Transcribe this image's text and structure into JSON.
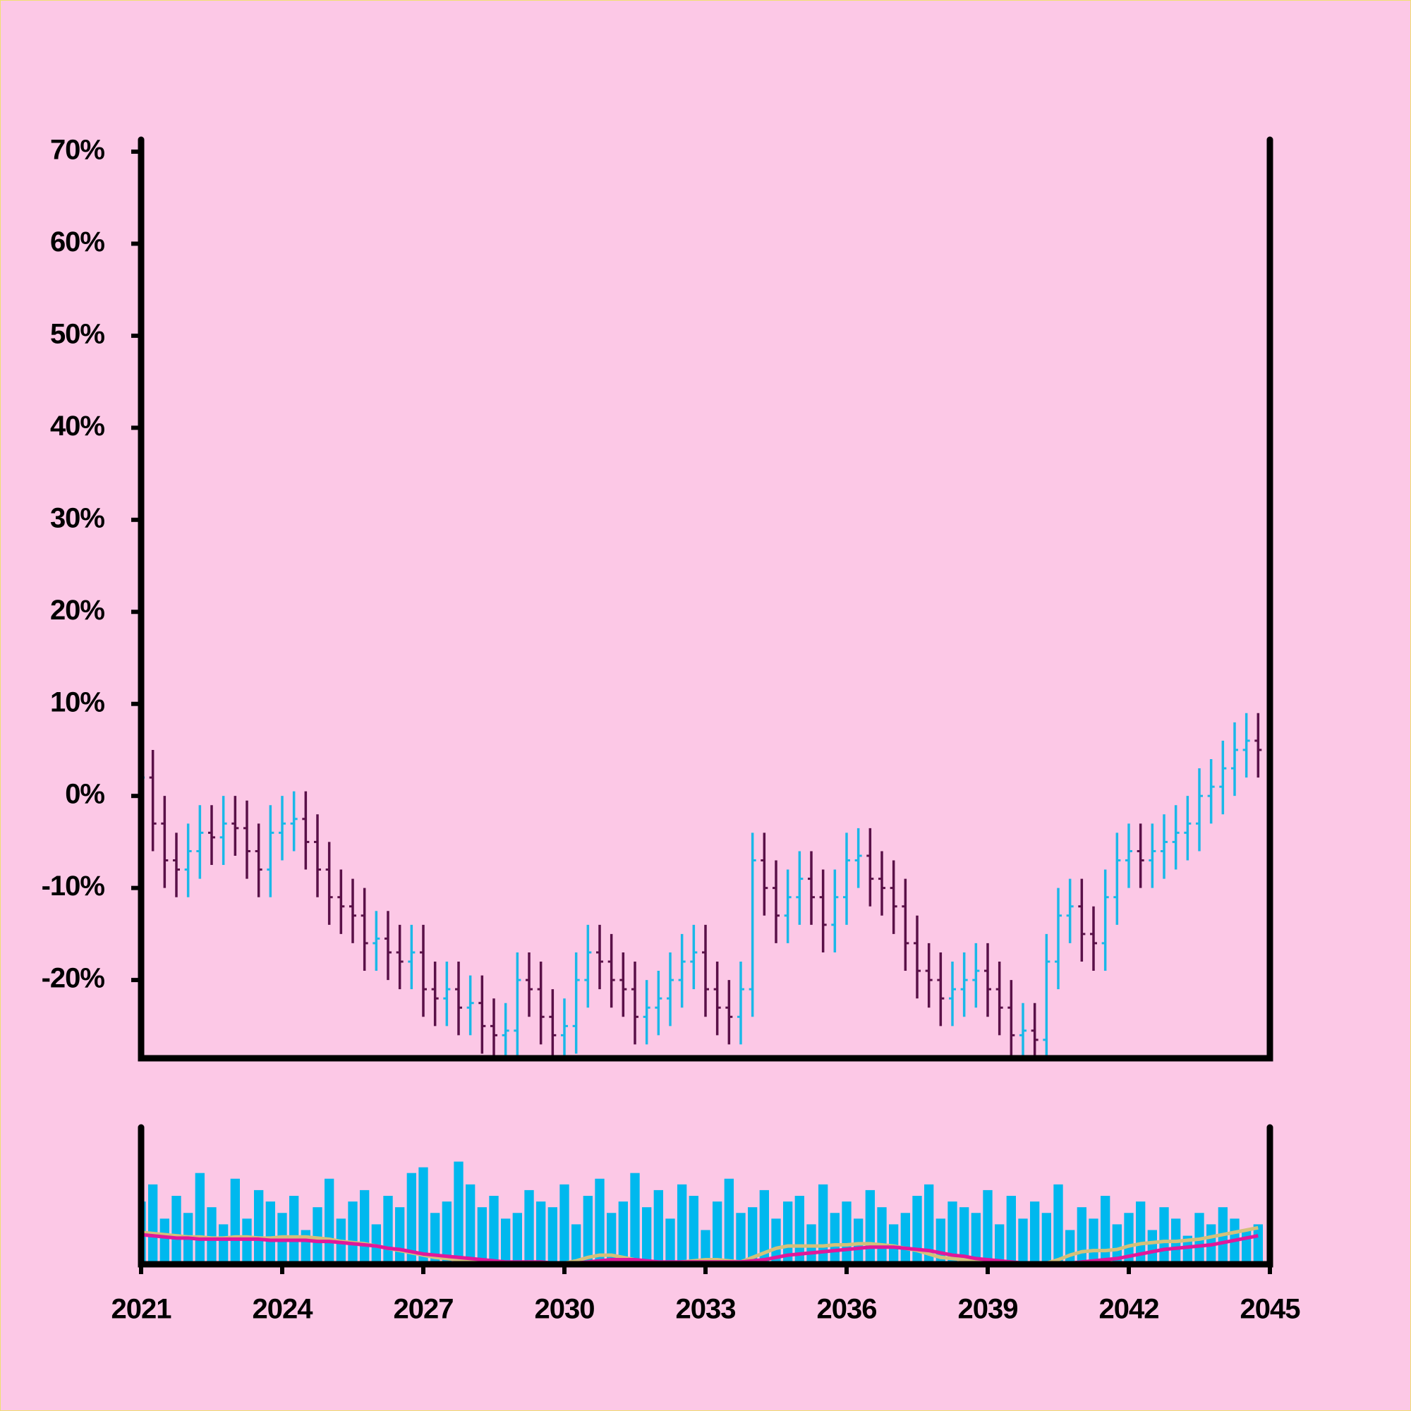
{
  "chart_data": {
    "type": "ohlc",
    "x": [
      2021,
      2021.25,
      2021.5,
      2021.75,
      2022,
      2022.25,
      2022.5,
      2022.75,
      2023,
      2023.25,
      2023.5,
      2023.75,
      2024,
      2024.25,
      2024.5,
      2024.75,
      2025,
      2025.25,
      2025.5,
      2025.75,
      2026,
      2026.25,
      2026.5,
      2026.75,
      2027,
      2027.25,
      2027.5,
      2027.75,
      2028,
      2028.25,
      2028.5,
      2028.75,
      2029,
      2029.25,
      2029.5,
      2029.75,
      2030,
      2030.25,
      2030.5,
      2030.75,
      2031,
      2031.25,
      2031.5,
      2031.75,
      2032,
      2032.25,
      2032.5,
      2032.75,
      2033,
      2033.25,
      2033.5,
      2033.75,
      2034,
      2034.25,
      2034.5,
      2034.75,
      2035,
      2035.25,
      2035.5,
      2035.75,
      2036,
      2036.25,
      2036.5,
      2036.75,
      2037,
      2037.25,
      2037.5,
      2037.75,
      2038,
      2038.25,
      2038.5,
      2038.75,
      2039,
      2039.25,
      2039.5,
      2039.75,
      2040,
      2040.25,
      2040.5,
      2040.75,
      2041,
      2041.25,
      2041.5,
      2041.75,
      2042,
      2042.25,
      2042.5,
      2042.75,
      2043,
      2043.25,
      2043.5,
      2043.75,
      2044,
      2044.25,
      2044.5,
      2044.75
    ],
    "xlim": [
      2021,
      2045
    ],
    "xticks": [
      2021,
      2024,
      2027,
      2030,
      2033,
      2036,
      2039,
      2042,
      2045
    ],
    "ylim": [
      -28.5,
      71.3
    ],
    "yticks": [
      {
        "value": -20,
        "label": "-20%"
      },
      {
        "value": -10,
        "label": "-10%"
      },
      {
        "value": 0,
        "label": "0%"
      },
      {
        "value": 10,
        "label": "10%"
      },
      {
        "value": 20,
        "label": "20%"
      },
      {
        "value": 30,
        "label": "30%"
      },
      {
        "value": 40,
        "label": "40%"
      },
      {
        "value": 50,
        "label": "50%"
      },
      {
        "value": 60,
        "label": "60%"
      },
      {
        "value": 70,
        "label": "70%"
      }
    ],
    "up_color": "#1ab8e8",
    "down_color": "#5a1048",
    "open": [
      1,
      2,
      -3,
      -7,
      -8,
      -6,
      -4,
      -4.5,
      -3,
      -3.5,
      -6,
      -8,
      -4,
      -3,
      -2.5,
      -5,
      -8,
      -11,
      -12,
      -13,
      -16,
      -15.5,
      -17,
      -18,
      -17,
      -21,
      -22,
      -21,
      -23,
      -22.5,
      -25,
      -26,
      -25.5,
      -20,
      -21,
      -24,
      -26,
      -25,
      -20,
      -17,
      -18,
      -20,
      -21,
      -24,
      -23,
      -22,
      -20,
      -18,
      -17,
      -21,
      -23,
      -24,
      -21,
      -7,
      -10,
      -13,
      -11,
      -9,
      -11,
      -14,
      -11,
      -7,
      -6.5,
      -9,
      -10,
      -12,
      -16,
      -19,
      -20,
      -22,
      -21,
      -20,
      -19,
      -21,
      -23,
      -26,
      -25.5,
      -26.5,
      -18,
      -13,
      -12,
      -15,
      -16,
      -11,
      -7,
      -6,
      -7,
      -6,
      -5,
      -4,
      -3,
      0,
      1,
      3,
      5,
      6
    ],
    "high": [
      5,
      5,
      0,
      -4,
      -3,
      -1,
      -1,
      0,
      0,
      -0.5,
      -3,
      -1,
      0,
      0.5,
      0.5,
      -2,
      -5,
      -8,
      -9,
      -10,
      -12.5,
      -12.5,
      -14,
      -14,
      -14,
      -18,
      -18,
      -18,
      -19.5,
      -19.5,
      -22,
      -22.5,
      -17,
      -17,
      -18,
      -21,
      -22,
      -17,
      -14,
      -14,
      -15,
      -17,
      -18,
      -20,
      -19,
      -17,
      -15,
      -14,
      -14,
      -18,
      -20,
      -18,
      -4,
      -4,
      -7,
      -8,
      -6,
      -6,
      -8,
      -8,
      -4,
      -3.5,
      -3.5,
      -6,
      -7,
      -9,
      -13,
      -16,
      -17,
      -18,
      -17,
      -16,
      -16,
      -18,
      -20,
      -22.5,
      -22.5,
      -15,
      -10,
      -9,
      -9,
      -12,
      -8,
      -4,
      -3,
      -3,
      -3,
      -2,
      -1,
      0,
      3,
      4,
      6,
      8,
      9,
      9
    ],
    "low": [
      -2,
      -6,
      -10,
      -11,
      -11,
      -9,
      -7.5,
      -7.5,
      -6.5,
      -9,
      -11,
      -11,
      -7,
      -6,
      -8,
      -11,
      -14,
      -15,
      -16,
      -19,
      -19,
      -20,
      -21,
      -21,
      -24,
      -25,
      -25,
      -26,
      -26,
      -28,
      -29,
      -29,
      -28.5,
      -24,
      -27,
      -29,
      -29,
      -28,
      -23,
      -21,
      -23,
      -24,
      -27,
      -27,
      -26,
      -25,
      -23,
      -21,
      -24,
      -26,
      -27,
      -27,
      -24,
      -13,
      -16,
      -16,
      -14,
      -14,
      -17,
      -17,
      -14,
      -10,
      -12,
      -13,
      -15,
      -19,
      -22,
      -23,
      -25,
      -25,
      -24,
      -23,
      -24,
      -26,
      -29,
      -29,
      -29.5,
      -29.5,
      -21,
      -16,
      -18,
      -19,
      -19,
      -14,
      -10,
      -10,
      -10,
      -9,
      -8,
      -7,
      -6,
      -3,
      -2,
      0,
      2,
      2
    ],
    "close": [
      2,
      -3,
      -7,
      -8,
      -6,
      -4,
      -4.5,
      -3,
      -3.5,
      -6,
      -8,
      -4,
      -3,
      -2.5,
      -5,
      -8,
      -11,
      -12,
      -13,
      -16,
      -15.5,
      -17,
      -18,
      -17,
      -21,
      -22,
      -21,
      -23,
      -22.5,
      -25,
      -26,
      -25.5,
      -20,
      -21,
      -24,
      -26,
      -25,
      -20,
      -17,
      -18,
      -20,
      -21,
      -24,
      -23,
      -22,
      -20,
      -18,
      -17,
      -21,
      -23,
      -24,
      -21,
      -7,
      -10,
      -13,
      -11,
      -9,
      -11,
      -14,
      -11,
      -7,
      -6.5,
      -9,
      -10,
      -12,
      -16,
      -19,
      -20,
      -22,
      -21,
      -20,
      -19,
      -21,
      -23,
      -26,
      -25.5,
      -26.5,
      -18,
      -13,
      -12,
      -15,
      -16,
      -11,
      -7,
      -6,
      -7,
      -6,
      -5,
      -4,
      -3,
      0,
      1,
      3,
      5,
      6,
      5
    ],
    "volume": {
      "color": "#00b8ee",
      "ylim": [
        0,
        120
      ],
      "values": [
        55,
        70,
        40,
        60,
        45,
        80,
        50,
        35,
        75,
        40,
        65,
        55,
        45,
        60,
        30,
        50,
        75,
        40,
        55,
        65,
        35,
        60,
        50,
        80,
        85,
        45,
        55,
        90,
        70,
        50,
        60,
        40,
        45,
        65,
        55,
        50,
        70,
        35,
        60,
        75,
        45,
        55,
        80,
        50,
        65,
        40,
        70,
        60,
        30,
        55,
        75,
        45,
        50,
        65,
        40,
        55,
        60,
        35,
        70,
        45,
        55,
        40,
        65,
        50,
        35,
        45,
        60,
        70,
        40,
        55,
        50,
        45,
        65,
        35,
        60,
        40,
        55,
        45,
        70,
        30,
        50,
        40,
        60,
        35,
        45,
        55,
        30,
        50,
        40,
        25,
        45,
        35,
        50,
        40,
        30,
        35
      ]
    },
    "series": [
      {
        "color": "#d4c07a",
        "values": [
          28,
          27,
          26,
          25,
          24,
          24,
          23,
          23,
          24,
          24,
          23,
          23,
          24,
          24,
          24,
          23,
          22,
          20,
          19,
          18,
          16,
          14,
          12,
          10,
          8,
          6,
          5,
          4,
          3,
          2,
          1,
          0,
          1,
          2,
          1,
          0,
          1,
          3,
          6,
          8,
          8,
          6,
          4,
          2,
          1,
          1,
          2,
          3,
          4,
          4,
          3,
          2,
          6,
          10,
          14,
          16,
          16,
          16,
          16,
          17,
          17,
          18,
          18,
          17,
          16,
          14,
          12,
          9,
          6,
          5,
          4,
          3,
          2,
          1,
          0,
          0,
          0,
          1,
          4,
          8,
          11,
          12,
          12,
          13,
          16,
          18,
          19,
          20,
          20,
          21,
          22,
          24,
          26,
          28,
          30,
          32
        ]
      },
      {
        "color": "#e0189a",
        "values": [
          26,
          25,
          24,
          23,
          23,
          22,
          22,
          22,
          22,
          22,
          22,
          21,
          21,
          21,
          21,
          20,
          20,
          19,
          18,
          17,
          16,
          14,
          13,
          11,
          9,
          8,
          7,
          6,
          5,
          4,
          3,
          2,
          2,
          2,
          2,
          1,
          1,
          1,
          2,
          3,
          4,
          4,
          4,
          3,
          2,
          2,
          2,
          2,
          2,
          2,
          2,
          2,
          3,
          4,
          6,
          8,
          9,
          10,
          11,
          12,
          13,
          14,
          15,
          15,
          15,
          14,
          13,
          12,
          10,
          8,
          7,
          5,
          4,
          3,
          2,
          1,
          0,
          0,
          0,
          1,
          2,
          3,
          4,
          5,
          7,
          9,
          11,
          13,
          14,
          15,
          16,
          17,
          19,
          21,
          23,
          25
        ]
      }
    ]
  }
}
